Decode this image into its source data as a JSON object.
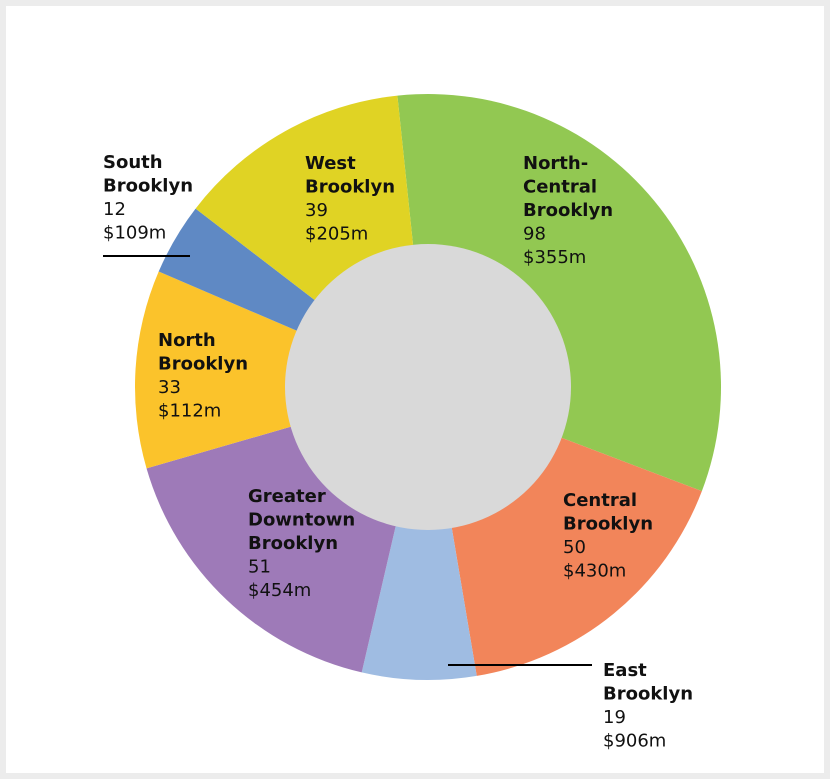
{
  "chart_data": {
    "type": "pie",
    "title": "",
    "style": "donut",
    "colors": {
      "background": "#ececec",
      "panel": "#ffffff",
      "center": "#d9d9d9",
      "text": "#111111",
      "leader": "#000000"
    },
    "slices": [
      {
        "name_lines": [
          "North-",
          "Central",
          "Brooklyn"
        ],
        "count": "98",
        "amount": "$355m",
        "value": 98,
        "color": "#92c852"
      },
      {
        "name_lines": [
          "Central",
          "Brooklyn"
        ],
        "count": "50",
        "amount": "$430m",
        "value": 50,
        "color": "#f2855a"
      },
      {
        "name_lines": [
          "East",
          "Brooklyn"
        ],
        "count": "19",
        "amount": "$906m",
        "value": 19,
        "color": "#9fbce2"
      },
      {
        "name_lines": [
          "Greater",
          "Downtown",
          "Brooklyn"
        ],
        "count": "51",
        "amount": "$454m",
        "value": 51,
        "color": "#9e7ab8"
      },
      {
        "name_lines": [
          "North",
          "Brooklyn"
        ],
        "count": "33",
        "amount": "$112m",
        "value": 33,
        "color": "#fbc32b"
      },
      {
        "name_lines": [
          "South",
          "Brooklyn"
        ],
        "count": "12",
        "amount": "$109m",
        "value": 12,
        "color": "#5f89c4"
      },
      {
        "name_lines": [
          "West",
          "Brooklyn"
        ],
        "count": "39",
        "amount": "$205m",
        "value": 39,
        "color": "#e0d324"
      }
    ]
  }
}
